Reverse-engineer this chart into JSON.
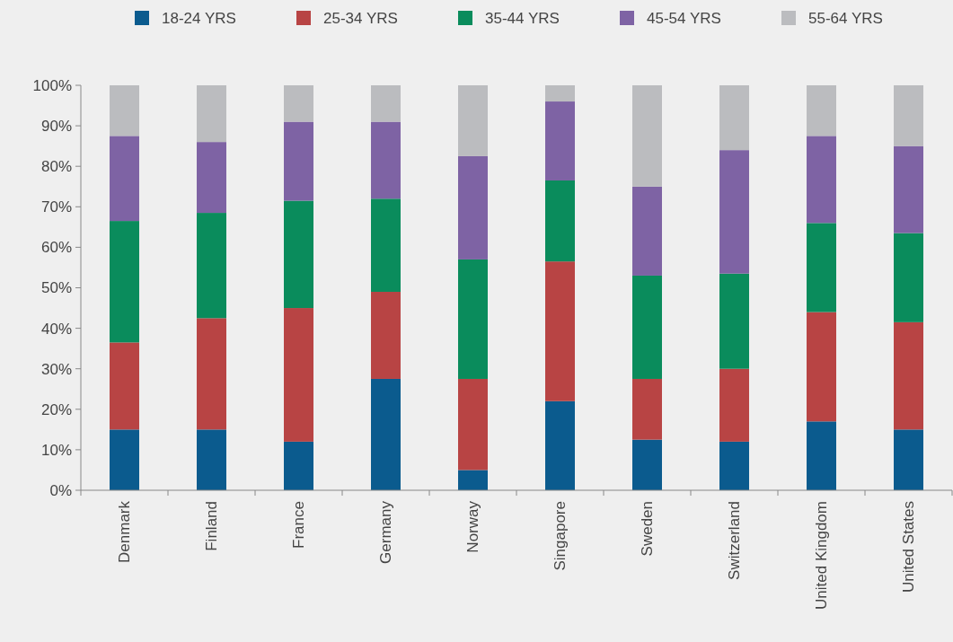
{
  "chart_data": {
    "type": "bar",
    "stacked": true,
    "legend": "top",
    "grid": false,
    "categories": [
      "Denmark",
      "Finland",
      "France",
      "Germany",
      "Norway",
      "Singapore",
      "Sweden",
      "Switzerland",
      "United Kingdom",
      "United States"
    ],
    "series": [
      {
        "name": "18-24 YRS",
        "color": "#0b5b8e",
        "values": [
          15,
          15,
          12,
          27.5,
          5,
          22,
          12.5,
          12,
          17,
          15
        ]
      },
      {
        "name": "25-34 YRS",
        "color": "#b84444",
        "values": [
          21.5,
          27.5,
          33,
          21.5,
          22.5,
          34.5,
          15,
          18,
          27,
          26.5
        ]
      },
      {
        "name": "35-44 YRS",
        "color": "#0a8c5c",
        "values": [
          30,
          26,
          26.5,
          23,
          29.5,
          20,
          25.5,
          23.5,
          22,
          22
        ]
      },
      {
        "name": "45-54 YRS",
        "color": "#7e63a4",
        "values": [
          21,
          17.5,
          19.5,
          19,
          25.5,
          19.5,
          22,
          30.5,
          21.5,
          21.5
        ]
      },
      {
        "name": "55-64 YRS",
        "color": "#bbbcbf",
        "values": [
          12.5,
          14,
          9,
          9,
          17.5,
          4,
          25,
          16,
          12.5,
          15
        ]
      }
    ],
    "ylim": [
      0,
      100
    ],
    "yticks": [
      {
        "value": 0,
        "label": "0%"
      },
      {
        "value": 10,
        "label": "10%"
      },
      {
        "value": 20,
        "label": "20%"
      },
      {
        "value": 30,
        "label": "30%"
      },
      {
        "value": 40,
        "label": "40%"
      },
      {
        "value": 50,
        "label": "50%"
      },
      {
        "value": 60,
        "label": "60%"
      },
      {
        "value": 70,
        "label": "70%"
      },
      {
        "value": 80,
        "label": "80%"
      },
      {
        "value": 90,
        "label": "90%"
      },
      {
        "value": 100,
        "label": "100%"
      }
    ]
  }
}
